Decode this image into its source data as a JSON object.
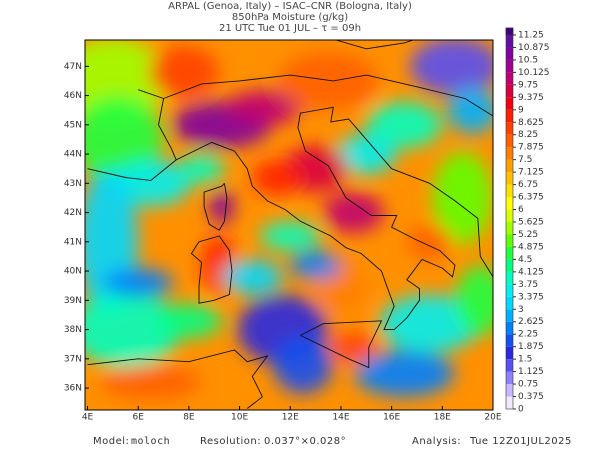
{
  "header": {
    "lines": [
      "ARPAL (Genoa, Italy)  –  ISAC–CNR (Bologna, Italy)",
      "850hPa Moisture (g/kg)",
      "21 UTC Tue 01 JUL  –  τ = 09h"
    ]
  },
  "map": {
    "xlim": [
      3.9,
      20.0
    ],
    "ylim": [
      35.25,
      47.9
    ],
    "xticks": [
      {
        "value": 4,
        "label": "4E"
      },
      {
        "value": 6,
        "label": "6E"
      },
      {
        "value": 8,
        "label": "8E"
      },
      {
        "value": 10,
        "label": "10E"
      },
      {
        "value": 12,
        "label": "12E"
      },
      {
        "value": 14,
        "label": "14E"
      },
      {
        "value": 16,
        "label": "16E"
      },
      {
        "value": 18,
        "label": "18E"
      },
      {
        "value": 20,
        "label": "20E"
      }
    ],
    "yticks": [
      {
        "value": 36,
        "label": "36N"
      },
      {
        "value": 37,
        "label": "37N"
      },
      {
        "value": 38,
        "label": "38N"
      },
      {
        "value": 39,
        "label": "39N"
      },
      {
        "value": 40,
        "label": "40N"
      },
      {
        "value": 41,
        "label": "41N"
      },
      {
        "value": 42,
        "label": "42N"
      },
      {
        "value": 43,
        "label": "43N"
      },
      {
        "value": 44,
        "label": "44N"
      },
      {
        "value": 45,
        "label": "45N"
      },
      {
        "value": 46,
        "label": "46N"
      },
      {
        "value": 47,
        "label": "47N"
      }
    ]
  },
  "colorbar": {
    "ticks": [
      0,
      0.375,
      0.75,
      1.125,
      1.5,
      1.875,
      2.25,
      2.625,
      3,
      3.375,
      3.75,
      4.125,
      4.5,
      4.875,
      5.25,
      5.625,
      6,
      6.375,
      6.75,
      7.125,
      7.5,
      7.875,
      8.25,
      8.625,
      9,
      9.375,
      9.75,
      10.125,
      10.5,
      10.875,
      11.25
    ],
    "colors": [
      "#f0e8ff",
      "#c8b8ff",
      "#9080ff",
      "#5a50f0",
      "#2828e0",
      "#1450f0",
      "#0080ff",
      "#00b0ff",
      "#00d8ff",
      "#00f0f0",
      "#00ffc0",
      "#00ff80",
      "#20ff40",
      "#60ff00",
      "#a0ff00",
      "#d8ff00",
      "#ffff00",
      "#ffe000",
      "#ffc000",
      "#ffa000",
      "#ff8000",
      "#ff6000",
      "#ff4000",
      "#ff2000",
      "#f00010",
      "#d80040",
      "#c00070",
      "#a00090",
      "#8000a0",
      "#6010a0"
    ]
  },
  "footer": [
    {
      "label": "Model:",
      "value": "moloch"
    },
    {
      "label": "Resolution:",
      "value": "0.037°×0.028°"
    },
    {
      "label": "Analysis:",
      "value": "Tue 12Z01JUL2025"
    }
  ]
}
